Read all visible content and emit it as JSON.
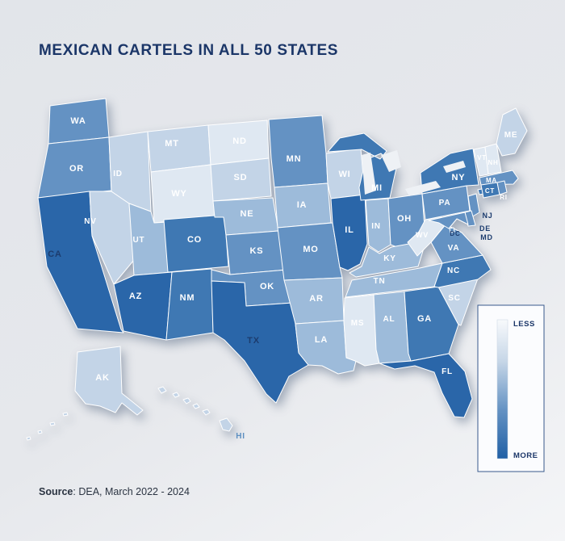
{
  "title": "MEXICAN CARTELS IN ALL 50 STATES",
  "source": {
    "label": "Source",
    "rest": ": DEA, March 2022 - 2024"
  },
  "legend": {
    "top": "LESS",
    "bottom": "MORE"
  },
  "colors": {
    "title": "#1b3668",
    "background_start": "#e2e5ea",
    "background_end": "#f4f5f7",
    "state_border": "#ffffff",
    "label_light": "#ffffff",
    "label_dark": "#1c3c6e",
    "label_blue": "#5d8fc1",
    "legend_border": "#38598c",
    "legend_bg": "#fbfcfe",
    "lake": "#eef1f5",
    "scale": {
      "t0": "#dfe8f2",
      "t1": "#c3d4e7",
      "t2": "#9dbbda",
      "t3": "#6492c3",
      "t4": "#3f78b3",
      "t5": "#2a66a9"
    }
  },
  "map": {
    "type": "choropleth",
    "scale_meaning": "LESS (light) to MORE (dark)",
    "states": [
      {
        "abbr": "WA",
        "tier": "t3"
      },
      {
        "abbr": "OR",
        "tier": "t3"
      },
      {
        "abbr": "CA",
        "tier": "t5"
      },
      {
        "abbr": "NV",
        "tier": "t1"
      },
      {
        "abbr": "ID",
        "tier": "t1"
      },
      {
        "abbr": "MT",
        "tier": "t1"
      },
      {
        "abbr": "WY",
        "tier": "t0"
      },
      {
        "abbr": "UT",
        "tier": "t2"
      },
      {
        "abbr": "AZ",
        "tier": "t5"
      },
      {
        "abbr": "NM",
        "tier": "t4"
      },
      {
        "abbr": "CO",
        "tier": "t4"
      },
      {
        "abbr": "ND",
        "tier": "t0"
      },
      {
        "abbr": "SD",
        "tier": "t1"
      },
      {
        "abbr": "NE",
        "tier": "t2"
      },
      {
        "abbr": "KS",
        "tier": "t3"
      },
      {
        "abbr": "OK",
        "tier": "t3"
      },
      {
        "abbr": "TX",
        "tier": "t5"
      },
      {
        "abbr": "MN",
        "tier": "t3"
      },
      {
        "abbr": "IA",
        "tier": "t2"
      },
      {
        "abbr": "MO",
        "tier": "t3"
      },
      {
        "abbr": "AR",
        "tier": "t2"
      },
      {
        "abbr": "LA",
        "tier": "t2"
      },
      {
        "abbr": "WI",
        "tier": "t1"
      },
      {
        "abbr": "IL",
        "tier": "t5"
      },
      {
        "abbr": "MI",
        "tier": "t4"
      },
      {
        "abbr": "IN",
        "tier": "t2"
      },
      {
        "abbr": "OH",
        "tier": "t3"
      },
      {
        "abbr": "KY",
        "tier": "t2"
      },
      {
        "abbr": "TN",
        "tier": "t2"
      },
      {
        "abbr": "MS",
        "tier": "t0"
      },
      {
        "abbr": "AL",
        "tier": "t2"
      },
      {
        "abbr": "GA",
        "tier": "t4"
      },
      {
        "abbr": "SC",
        "tier": "t1"
      },
      {
        "abbr": "NC",
        "tier": "t4"
      },
      {
        "abbr": "FL",
        "tier": "t5"
      },
      {
        "abbr": "VA",
        "tier": "t3"
      },
      {
        "abbr": "WV",
        "tier": "t0"
      },
      {
        "abbr": "PA",
        "tier": "t3"
      },
      {
        "abbr": "NY",
        "tier": "t4"
      },
      {
        "abbr": "VT",
        "tier": "t0"
      },
      {
        "abbr": "NH",
        "tier": "t0"
      },
      {
        "abbr": "ME",
        "tier": "t1"
      },
      {
        "abbr": "MA",
        "tier": "t3"
      },
      {
        "abbr": "CT",
        "tier": "t4"
      },
      {
        "abbr": "RI",
        "tier": "t3"
      },
      {
        "abbr": "NJ",
        "tier": "t3"
      },
      {
        "abbr": "DE",
        "tier": "t3"
      },
      {
        "abbr": "MD",
        "tier": "t3"
      },
      {
        "abbr": "DC",
        "tier": "t3"
      },
      {
        "abbr": "AK",
        "tier": "t1"
      },
      {
        "abbr": "HI",
        "tier": "t1"
      }
    ]
  }
}
